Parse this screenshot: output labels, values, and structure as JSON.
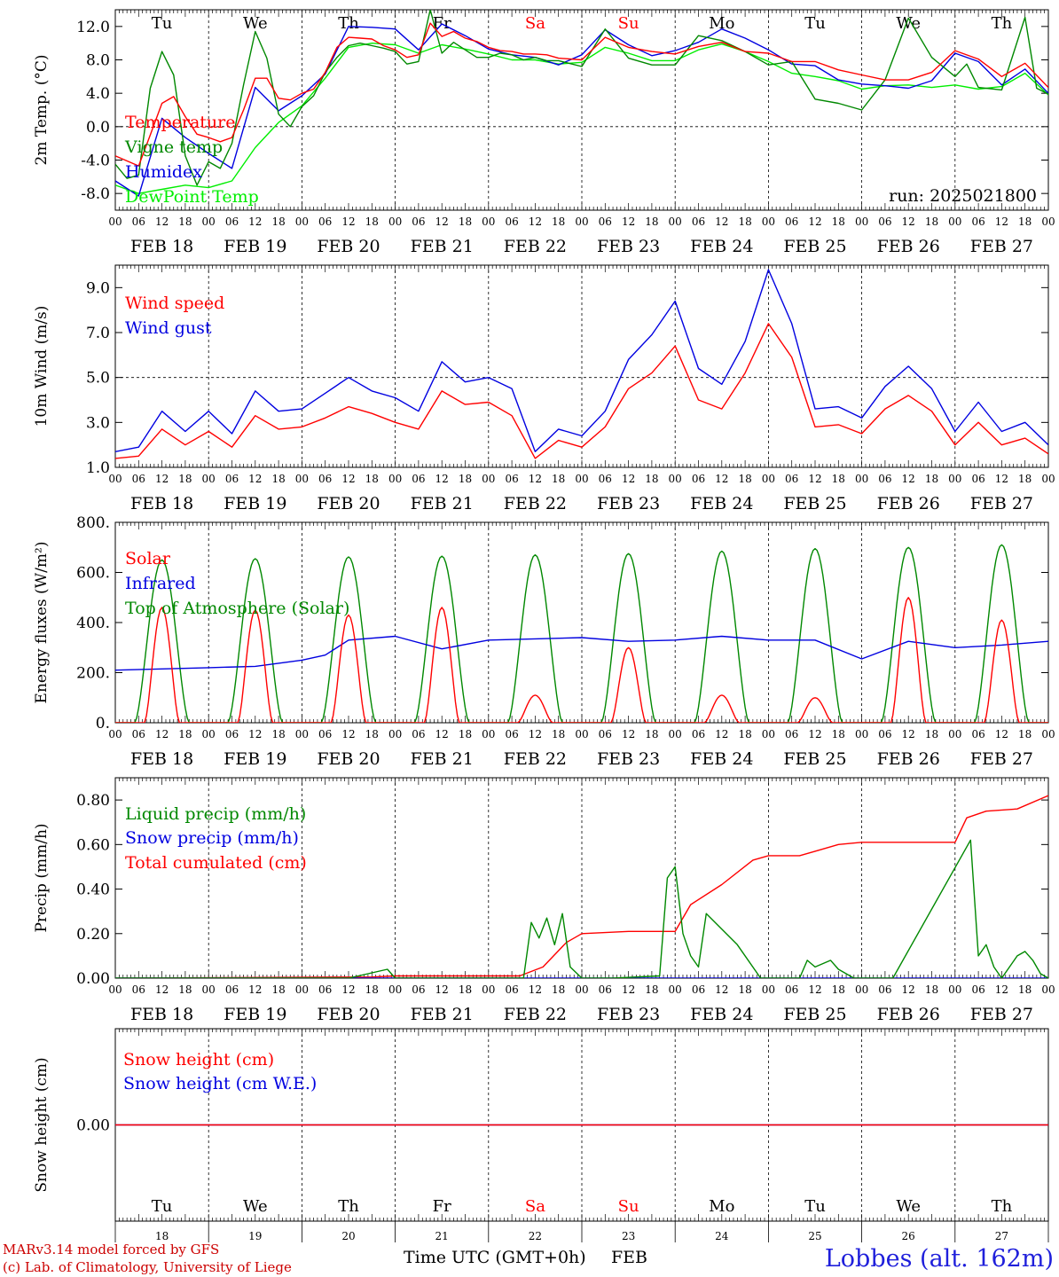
{
  "colors": {
    "temperature": "#ff0000",
    "vigne": "#008800",
    "humidex": "#0000e0",
    "dewpoint": "#00ee00",
    "weekend": "#ff0000",
    "weekday": "#000000",
    "station": "#1f1fdb"
  },
  "dates": [
    "FEB 18",
    "FEB 19",
    "FEB 20",
    "FEB 21",
    "FEB 22",
    "FEB 23",
    "FEB 24",
    "FEB 25",
    "FEB 26",
    "FEB 27"
  ],
  "hour_labels": [
    "00",
    "06",
    "12",
    "18"
  ],
  "final_hour_label": "00",
  "day_names": [
    {
      "name": "Tu",
      "weekend": false
    },
    {
      "name": "We",
      "weekend": false
    },
    {
      "name": "Th",
      "weekend": false
    },
    {
      "name": "Fr",
      "weekend": false
    },
    {
      "name": "Sa",
      "weekend": true
    },
    {
      "name": "Su",
      "weekend": true
    },
    {
      "name": "Mo",
      "weekend": false
    },
    {
      "name": "Tu",
      "weekend": false
    },
    {
      "name": "We",
      "weekend": false
    },
    {
      "name": "Th",
      "weekend": false
    }
  ],
  "day_numbers": [
    "18",
    "19",
    "20",
    "21",
    "22",
    "23",
    "24",
    "25",
    "26",
    "27"
  ],
  "footer": {
    "credit_line1": "MARv3.14 model forced by GFS",
    "credit_line2": "(c) Lab. of Climatology, University of Liege",
    "x_axis_title": "Time UTC (GMT+0h)",
    "month": "FEB",
    "station": "Lobbes (alt. 162m)"
  },
  "chart_data": [
    {
      "type": "line",
      "ylabel": "2m Temp. (°C)",
      "ylim": [
        -10.0,
        14.0
      ],
      "yticks": [
        "12.0",
        "8.0",
        "4.0",
        "0.0",
        "-4.0",
        "-8.0"
      ],
      "ytick_values": [
        12,
        8,
        4,
        0,
        -4,
        -8
      ],
      "dashed_reference": 0,
      "annotation": "run: 2025021800",
      "x_unit": "hours since FEB 18 00 UTC",
      "series": [
        {
          "name": "Temperature",
          "color": "#ff0000",
          "x": [
            0,
            6,
            9,
            12,
            15,
            18,
            21,
            24,
            27,
            30,
            33,
            36,
            39,
            42,
            45,
            48,
            51,
            54,
            57,
            60,
            63,
            66,
            69,
            72,
            75,
            78,
            81,
            84,
            87,
            90,
            93,
            96,
            99,
            102,
            105,
            108,
            111,
            114,
            120,
            126,
            132,
            138,
            144,
            150,
            156,
            162,
            168,
            174,
            180,
            186,
            192,
            198,
            204,
            210,
            216,
            222,
            228,
            234,
            240
          ],
          "values": [
            -3.5,
            -4.7,
            -1.0,
            2.8,
            3.6,
            1.2,
            -0.9,
            -1.3,
            -1.8,
            -1.3,
            2.0,
            5.8,
            5.8,
            3.4,
            3.2,
            4.0,
            4.5,
            6.5,
            9.5,
            10.7,
            10.6,
            10.5,
            9.7,
            9.2,
            8.3,
            8.6,
            12.4,
            10.8,
            11.4,
            10.6,
            10.2,
            9.5,
            9.1,
            9.0,
            8.7,
            8.7,
            8.6,
            8.2,
            8.0,
            10.7,
            9.5,
            9.0,
            8.7,
            9.6,
            10.1,
            9.0,
            8.8,
            7.8,
            7.8,
            6.8,
            6.2,
            5.6,
            5.6,
            6.5,
            9.1,
            8.1,
            6.0,
            7.6,
            4.7
          ]
        },
        {
          "name": "Vigne temp",
          "color": "#008800",
          "x": [
            0,
            3,
            6,
            9,
            12,
            15,
            18,
            21,
            24,
            27,
            30,
            33,
            36,
            39,
            42,
            45,
            48,
            51,
            54,
            57,
            60,
            63,
            66,
            69,
            72,
            75,
            78,
            81,
            84,
            87,
            90,
            93,
            96,
            99,
            102,
            105,
            108,
            111,
            114,
            120,
            126,
            132,
            138,
            144,
            150,
            156,
            162,
            168,
            174,
            180,
            186,
            192,
            198,
            204,
            210,
            216,
            219,
            222,
            228,
            234,
            237,
            240
          ],
          "values": [
            -4.5,
            -6.2,
            -5.8,
            4.6,
            9.0,
            6.2,
            -3.5,
            -7.0,
            -4.2,
            -5.0,
            -2.0,
            5.0,
            11.4,
            8.2,
            1.5,
            0.0,
            2.4,
            3.7,
            6.5,
            8.3,
            9.7,
            10.0,
            9.7,
            9.4,
            9.0,
            7.5,
            7.8,
            14.0,
            8.8,
            10.1,
            9.2,
            8.3,
            8.3,
            8.8,
            8.6,
            8.0,
            8.3,
            7.9,
            7.9,
            7.2,
            11.7,
            8.2,
            7.4,
            7.4,
            10.9,
            10.3,
            9.0,
            7.4,
            7.8,
            3.3,
            2.8,
            2.0,
            5.6,
            13.0,
            8.3,
            6.0,
            7.5,
            4.7,
            4.4,
            13.1,
            4.6,
            3.9
          ]
        },
        {
          "name": "Humidex",
          "color": "#0000e0",
          "x": [
            0,
            6,
            12,
            18,
            24,
            30,
            36,
            42,
            48,
            54,
            60,
            66,
            72,
            78,
            84,
            90,
            96,
            102,
            108,
            114,
            120,
            126,
            132,
            138,
            144,
            150,
            156,
            162,
            168,
            174,
            180,
            186,
            192,
            198,
            204,
            210,
            216,
            222,
            228,
            234,
            240
          ],
          "values": [
            -6.5,
            -8.3,
            1.0,
            -1.3,
            -3.2,
            -5.0,
            4.7,
            1.9,
            3.7,
            6.3,
            12.0,
            11.9,
            11.7,
            9.2,
            12.3,
            10.9,
            9.3,
            8.6,
            8.3,
            7.4,
            8.6,
            11.6,
            9.8,
            8.5,
            9.1,
            10.1,
            11.7,
            10.6,
            9.2,
            7.5,
            7.3,
            5.6,
            5.1,
            4.9,
            4.6,
            5.5,
            8.8,
            7.8,
            5.0,
            6.9,
            4.0
          ]
        },
        {
          "name": "DewPoint Temp",
          "color": "#00ee00",
          "x": [
            0,
            6,
            12,
            18,
            24,
            30,
            36,
            42,
            48,
            54,
            60,
            66,
            72,
            78,
            84,
            90,
            96,
            102,
            108,
            114,
            120,
            126,
            132,
            138,
            144,
            150,
            156,
            162,
            168,
            174,
            180,
            186,
            192,
            198,
            204,
            210,
            216,
            222,
            228,
            234,
            240
          ],
          "values": [
            -7.0,
            -8.0,
            -7.5,
            -7.0,
            -7.3,
            -6.5,
            -2.5,
            0.5,
            2.5,
            5.8,
            9.5,
            10.0,
            9.8,
            8.8,
            9.8,
            9.3,
            8.7,
            8.0,
            8.0,
            7.5,
            7.7,
            9.5,
            8.8,
            7.9,
            7.9,
            9.2,
            9.9,
            9.0,
            7.8,
            6.4,
            6.0,
            5.5,
            4.5,
            4.9,
            5.0,
            4.7,
            5.0,
            4.5,
            4.8,
            6.4,
            3.8
          ]
        }
      ]
    },
    {
      "type": "line",
      "ylabel": "10m Wind (m/s)",
      "ylim": [
        1.0,
        10.0
      ],
      "yticks": [
        "9.0",
        "7.0",
        "5.0",
        "3.0",
        "1.0"
      ],
      "ytick_values": [
        9,
        7,
        5,
        3,
        1
      ],
      "dashed_reference": 5,
      "x_unit": "hours since FEB 18 00 UTC",
      "series": [
        {
          "name": "Wind speed",
          "color": "#ff0000",
          "x": [
            0,
            6,
            12,
            18,
            24,
            30,
            36,
            42,
            48,
            54,
            60,
            66,
            72,
            78,
            84,
            90,
            96,
            102,
            108,
            114,
            120,
            126,
            132,
            138,
            144,
            150,
            156,
            162,
            168,
            174,
            180,
            186,
            192,
            198,
            204,
            210,
            216,
            222,
            228,
            234,
            240
          ],
          "values": [
            1.4,
            1.5,
            2.7,
            2.0,
            2.6,
            1.9,
            3.3,
            2.7,
            2.8,
            3.2,
            3.7,
            3.4,
            3.0,
            2.7,
            4.4,
            3.8,
            3.9,
            3.3,
            1.4,
            2.2,
            1.9,
            2.8,
            4.5,
            5.2,
            6.4,
            4.0,
            3.6,
            5.2,
            7.4,
            5.9,
            2.8,
            2.9,
            2.5,
            3.6,
            4.2,
            3.5,
            2.0,
            3.0,
            2.0,
            2.3,
            1.6
          ]
        },
        {
          "name": "Wind gust",
          "color": "#0000e0",
          "x": [
            0,
            6,
            12,
            18,
            24,
            30,
            36,
            42,
            48,
            54,
            60,
            66,
            72,
            78,
            84,
            90,
            96,
            102,
            108,
            114,
            120,
            126,
            132,
            138,
            144,
            150,
            156,
            162,
            168,
            174,
            180,
            186,
            192,
            198,
            204,
            210,
            216,
            222,
            228,
            234,
            240
          ],
          "values": [
            1.7,
            1.9,
            3.5,
            2.6,
            3.5,
            2.5,
            4.4,
            3.5,
            3.6,
            4.3,
            5.0,
            4.4,
            4.1,
            3.5,
            5.7,
            4.8,
            5.0,
            4.5,
            1.7,
            2.7,
            2.4,
            3.5,
            5.8,
            6.9,
            8.4,
            5.4,
            4.7,
            6.6,
            9.8,
            7.4,
            3.6,
            3.7,
            3.2,
            4.6,
            5.5,
            4.5,
            2.6,
            3.9,
            2.6,
            3.0,
            2.0
          ]
        }
      ]
    },
    {
      "type": "line",
      "ylabel": "Energy fluxes (W/m²)",
      "ylim": [
        0,
        800
      ],
      "yticks": [
        "800.",
        "600.",
        "400.",
        "200.",
        "0."
      ],
      "ytick_values": [
        800,
        600,
        400,
        200,
        0
      ],
      "x_unit": "hours since FEB 18 00 UTC",
      "series": [
        {
          "name": "Solar",
          "color": "#ff0000",
          "daily_peaks": [
            460,
            450,
            430,
            460,
            110,
            300,
            110,
            100,
            500,
            410
          ]
        },
        {
          "name": "Infrared",
          "color": "#0000e0",
          "x": [
            0,
            12,
            24,
            36,
            48,
            54,
            60,
            72,
            84,
            96,
            108,
            120,
            132,
            144,
            156,
            168,
            180,
            192,
            204,
            216,
            228,
            240
          ],
          "values": [
            210,
            215,
            220,
            225,
            250,
            270,
            330,
            345,
            295,
            330,
            335,
            340,
            325,
            330,
            345,
            330,
            330,
            255,
            325,
            300,
            310,
            325
          ]
        },
        {
          "name": "Top of Atmosphere (Solar)",
          "color": "#008800",
          "daily_peaks": [
            650,
            655,
            662,
            665,
            670,
            675,
            685,
            695,
            700,
            710
          ]
        }
      ]
    },
    {
      "type": "line",
      "ylabel": "Precip (mm/h)",
      "ylim": [
        0.0,
        0.9
      ],
      "yticks": [
        "0.80",
        "0.60",
        "0.40",
        "0.20",
        "0.00"
      ],
      "ytick_values": [
        0.8,
        0.6,
        0.4,
        0.2,
        0.0
      ],
      "x_unit": "hours since FEB 18 00 UTC",
      "series": [
        {
          "name": "Liquid precip (mm/h)",
          "color": "#008800",
          "x": [
            0,
            60,
            70,
            72,
            96,
            105,
            107,
            109,
            111,
            113,
            115,
            117,
            120,
            128,
            140,
            142,
            144,
            146,
            148,
            150,
            152,
            156,
            160,
            166,
            176,
            178,
            180,
            184,
            186,
            190,
            200,
            220,
            222,
            224,
            226,
            228,
            232,
            234,
            236,
            238,
            240
          ],
          "values": [
            0,
            0,
            0.04,
            0,
            0,
            0,
            0.25,
            0.18,
            0.27,
            0.15,
            0.29,
            0.05,
            0,
            0,
            0.01,
            0.45,
            0.5,
            0.2,
            0.1,
            0.05,
            0.29,
            0.22,
            0.15,
            0.0,
            0,
            0.08,
            0.05,
            0.08,
            0.04,
            0,
            0,
            0.62,
            0.1,
            0.15,
            0.05,
            0,
            0.1,
            0.12,
            0.08,
            0.02,
            0
          ]
        },
        {
          "name": "Snow precip (mm/h)",
          "color": "#0000e0",
          "x": [
            0,
            240
          ],
          "values": [
            0,
            0
          ]
        },
        {
          "name": "Total cumulated (cm)",
          "color": "#ff0000",
          "x": [
            0,
            66,
            72,
            104,
            110,
            116,
            120,
            132,
            144,
            148,
            156,
            164,
            168,
            176,
            180,
            186,
            192,
            198,
            216,
            219,
            224,
            232,
            240
          ],
          "values": [
            0,
            0.005,
            0.01,
            0.01,
            0.05,
            0.16,
            0.2,
            0.21,
            0.21,
            0.33,
            0.42,
            0.53,
            0.55,
            0.55,
            0.57,
            0.6,
            0.61,
            0.61,
            0.61,
            0.72,
            0.75,
            0.76,
            0.82
          ]
        }
      ]
    },
    {
      "type": "line",
      "ylabel": "Snow height (cm)",
      "ylim": [
        -0.5,
        0.5
      ],
      "yticks": [
        "0.00"
      ],
      "ytick_values": [
        0.0
      ],
      "x_unit": "hours since FEB 18 00 UTC",
      "series": [
        {
          "name": "Snow height (cm)",
          "color": "#ff0000",
          "x": [
            0,
            240
          ],
          "values": [
            0,
            0
          ]
        },
        {
          "name": "Snow height (cm W.E.)",
          "color": "#0000e0",
          "x": [
            0,
            240
          ],
          "values": [
            0,
            0
          ]
        }
      ]
    }
  ]
}
